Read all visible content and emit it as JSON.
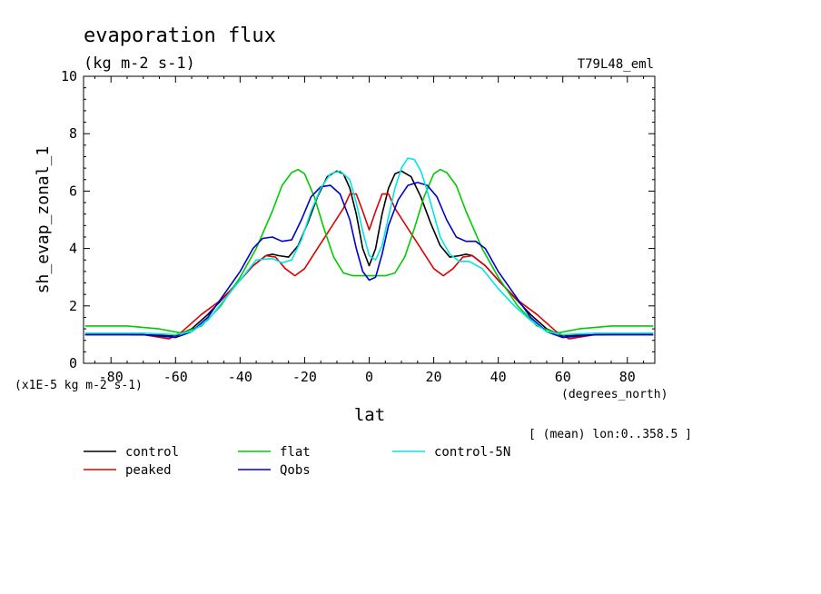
{
  "chart_data": {
    "type": "line",
    "title": "evaporation flux",
    "subtitle": "(kg m-2 s-1)",
    "run_label": "T79L48_eml",
    "xlabel": "lat",
    "x_units": "(degrees_north)",
    "ylabel": "sh_evap_zonal_1",
    "y_units": "(x1E-5 kg m-2 s-1)",
    "footnote": "[ (mean) lon:0..358.5 ]",
    "xlim": [
      -88.5,
      88.5
    ],
    "ylim": [
      0,
      10
    ],
    "x_ticks": [
      -80,
      -60,
      -40,
      -20,
      0,
      20,
      40,
      60,
      80
    ],
    "x_tick_labels": [
      "-80",
      "-60",
      "-40",
      "-20",
      "0",
      "20",
      "40",
      "60",
      "80"
    ],
    "y_ticks": [
      0,
      2,
      4,
      6,
      8,
      10
    ],
    "y_tick_labels": [
      "0",
      "2",
      "4",
      "6",
      "8",
      "10"
    ],
    "grid": false,
    "legend_position": "bottom",
    "series": [
      {
        "name": "control",
        "color": "#000000",
        "x": [
          -88,
          -75,
          -65,
          -60,
          -55,
          -50,
          -45,
          -40,
          -36,
          -32,
          -30,
          -28,
          -25,
          -22,
          -19,
          -16,
          -13,
          -10,
          -8,
          -6,
          -4,
          -2,
          0,
          2,
          4,
          6,
          8,
          10,
          13,
          16,
          19,
          22,
          25,
          28,
          30,
          32,
          36,
          40,
          45,
          50,
          55,
          60,
          65,
          75,
          88
        ],
        "y": [
          1.0,
          1.0,
          0.98,
          0.95,
          1.2,
          1.7,
          2.3,
          2.9,
          3.4,
          3.75,
          3.8,
          3.75,
          3.7,
          4.1,
          4.9,
          5.8,
          6.5,
          6.7,
          6.6,
          6.1,
          5.2,
          4.0,
          3.4,
          4.0,
          5.2,
          6.1,
          6.6,
          6.7,
          6.5,
          5.8,
          4.9,
          4.1,
          3.7,
          3.75,
          3.8,
          3.75,
          3.4,
          2.9,
          2.3,
          1.7,
          1.2,
          0.95,
          0.98,
          1.0,
          1.0
        ]
      },
      {
        "name": "peaked",
        "color": "#dd0000",
        "x": [
          -88,
          -70,
          -62,
          -58,
          -52,
          -46,
          -40,
          -36,
          -32,
          -29,
          -26,
          -23,
          -20,
          -16,
          -12,
          -8,
          -6,
          -4,
          -2,
          0,
          2,
          4,
          6,
          8,
          12,
          16,
          20,
          23,
          26,
          29,
          32,
          36,
          40,
          46,
          52,
          58,
          62,
          70,
          88
        ],
        "y": [
          1.0,
          1.0,
          0.85,
          1.1,
          1.7,
          2.2,
          2.9,
          3.4,
          3.75,
          3.7,
          3.3,
          3.05,
          3.3,
          4.0,
          4.7,
          5.4,
          5.9,
          5.9,
          5.3,
          4.65,
          5.3,
          5.9,
          5.9,
          5.4,
          4.7,
          4.0,
          3.3,
          3.05,
          3.3,
          3.7,
          3.75,
          3.4,
          2.9,
          2.2,
          1.7,
          1.1,
          0.85,
          1.0,
          1.0
        ]
      },
      {
        "name": "flat",
        "color": "#00cc00",
        "x": [
          -88,
          -75,
          -65,
          -58,
          -52,
          -46,
          -40,
          -35,
          -30,
          -27,
          -24,
          -22,
          -20,
          -17,
          -14,
          -11,
          -8,
          -5,
          -2,
          0,
          2,
          5,
          8,
          11,
          14,
          17,
          20,
          22,
          24,
          27,
          30,
          35,
          40,
          46,
          52,
          58,
          65,
          75,
          88
        ],
        "y": [
          1.3,
          1.3,
          1.2,
          1.05,
          1.3,
          2.0,
          3.0,
          4.0,
          5.3,
          6.2,
          6.65,
          6.75,
          6.6,
          5.8,
          4.7,
          3.7,
          3.15,
          3.05,
          3.05,
          3.05,
          3.05,
          3.05,
          3.15,
          3.7,
          4.7,
          5.8,
          6.6,
          6.75,
          6.65,
          6.2,
          5.3,
          4.0,
          3.0,
          2.0,
          1.3,
          1.05,
          1.2,
          1.3,
          1.3
        ]
      },
      {
        "name": "Qobs",
        "color": "#0000cc",
        "x": [
          -88,
          -70,
          -60,
          -55,
          -50,
          -45,
          -40,
          -36,
          -33,
          -30,
          -27,
          -24,
          -21,
          -18,
          -15,
          -12,
          -9,
          -6,
          -4,
          -2,
          0,
          2,
          4,
          6,
          9,
          12,
          15,
          18,
          21,
          24,
          27,
          30,
          33,
          36,
          40,
          45,
          50,
          55,
          60,
          70,
          88
        ],
        "y": [
          1.0,
          1.0,
          0.9,
          1.1,
          1.6,
          2.4,
          3.2,
          4.0,
          4.35,
          4.4,
          4.25,
          4.3,
          5.0,
          5.8,
          6.15,
          6.2,
          5.9,
          5.0,
          4.0,
          3.2,
          2.9,
          3.0,
          3.8,
          4.8,
          5.7,
          6.2,
          6.3,
          6.2,
          5.8,
          5.0,
          4.4,
          4.25,
          4.25,
          4.0,
          3.2,
          2.4,
          1.6,
          1.1,
          0.9,
          1.0,
          1.0
        ]
      },
      {
        "name": "control-5N",
        "color": "#00e5e5",
        "x": [
          -88,
          -70,
          -60,
          -55,
          -50,
          -45,
          -40,
          -35,
          -30,
          -27,
          -24,
          -21,
          -18,
          -15,
          -12,
          -9,
          -6,
          -4,
          -2,
          0,
          2,
          4,
          6,
          8,
          10,
          12,
          14,
          16,
          18,
          20,
          22,
          25,
          28,
          31,
          35,
          40,
          45,
          50,
          55,
          60,
          70,
          88
        ],
        "y": [
          1.05,
          1.05,
          1.0,
          1.1,
          1.5,
          2.2,
          2.9,
          3.6,
          3.65,
          3.5,
          3.6,
          4.3,
          5.3,
          6.1,
          6.6,
          6.7,
          6.4,
          5.6,
          4.6,
          3.75,
          3.6,
          4.1,
          5.1,
          6.1,
          6.8,
          7.15,
          7.1,
          6.7,
          6.0,
          5.2,
          4.4,
          3.8,
          3.55,
          3.55,
          3.3,
          2.6,
          2.0,
          1.5,
          1.1,
          1.0,
          1.05,
          1.05
        ]
      }
    ]
  }
}
